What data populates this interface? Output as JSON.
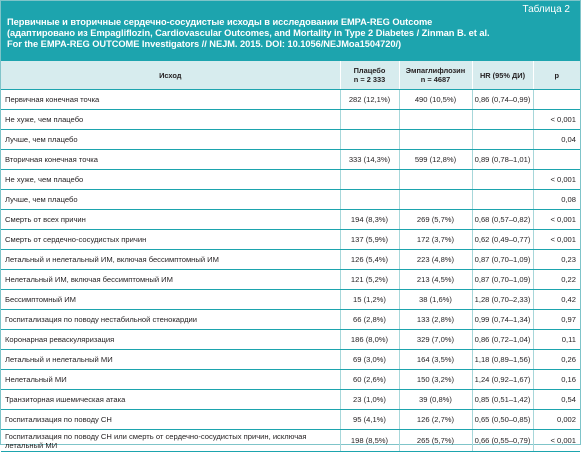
{
  "table_label": "Таблица 2",
  "title_lines": [
    "Первичные и вторичные сердечно-сосудистые исходы в исследовании EMPA-REG Outcome",
    "(адаптировано из Empagliflozin, Cardiovascular Outcomes, and Mortality in Type 2 Diabetes / Zinman B. et al.",
    "For the EMPA-REG OUTCOME Investigators // NEJM. 2015. DOI: 10.1056/NEJMoa1504720/)"
  ],
  "columns": {
    "outcome": "Исход",
    "placebo": "Плацебо",
    "placebo_n": "n = 2 333",
    "empa": "Эмпаглифлозин",
    "empa_n": "n = 4687",
    "hr": "HR (95% ДИ)",
    "p": "p"
  },
  "rows": [
    {
      "outcome": "Первичная конечная точка",
      "placebo": "282 (12,1%)",
      "empa": "490 (10,5%)",
      "hr": "0,86 (0,74–0,99)",
      "p": ""
    },
    {
      "outcome": "Не хуже, чем плацебо",
      "placebo": "",
      "empa": "",
      "hr": "",
      "p": "< 0,001"
    },
    {
      "outcome": "Лучше, чем плацебо",
      "placebo": "",
      "empa": "",
      "hr": "",
      "p": "0,04"
    },
    {
      "outcome": "Вторичная конечная точка",
      "placebo": "333 (14,3%)",
      "empa": "599 (12,8%)",
      "hr": "0,89 (0,78–1,01)",
      "p": ""
    },
    {
      "outcome": "Не хуже, чем плацебо",
      "placebo": "",
      "empa": "",
      "hr": "",
      "p": "< 0,001"
    },
    {
      "outcome": "Лучше, чем плацебо",
      "placebo": "",
      "empa": "",
      "hr": "",
      "p": "0,08"
    },
    {
      "outcome": "Смерть от всех причин",
      "placebo": "194 (8,3%)",
      "empa": "269 (5,7%)",
      "hr": "0,68 (0,57–0,82)",
      "p": "< 0,001"
    },
    {
      "outcome": "Смерть от сердечно-сосудистых причин",
      "placebo": "137 (5,9%)",
      "empa": "172 (3,7%)",
      "hr": "0,62 (0,49–0,77)",
      "p": "< 0,001"
    },
    {
      "outcome": "Летальный и нелетальный ИМ, включая бессимптомный ИМ",
      "placebo": "126 (5,4%)",
      "empa": "223 (4,8%)",
      "hr": "0,87 (0,70–1,09)",
      "p": "0,23"
    },
    {
      "outcome": "Нелетальный ИМ, включая бессимптомный ИМ",
      "placebo": "121 (5,2%)",
      "empa": "213 (4,5%)",
      "hr": "0,87 (0,70–1,09)",
      "p": "0,22"
    },
    {
      "outcome": "Бессимптомный ИМ",
      "placebo": "15 (1,2%)",
      "empa": "38 (1,6%)",
      "hr": "1,28 (0,70–2,33)",
      "p": "0,42"
    },
    {
      "outcome": "Госпитализация по поводу нестабильной стенокардии",
      "placebo": "66 (2,8%)",
      "empa": "133 (2,8%)",
      "hr": "0,99 (0,74–1,34)",
      "p": "0,97"
    },
    {
      "outcome": "Коронарная реваскуляризация",
      "placebo": "186 (8,0%)",
      "empa": "329 (7,0%)",
      "hr": "0,86 (0,72–1,04)",
      "p": "0,11"
    },
    {
      "outcome": "Летальный и нелетальный МИ",
      "placebo": "69 (3,0%)",
      "empa": "164 (3,5%)",
      "hr": "1,18 (0,89–1,56)",
      "p": "0,26"
    },
    {
      "outcome": "Нелетальный МИ",
      "placebo": "60 (2,6%)",
      "empa": "150 (3,2%)",
      "hr": "1,24 (0,92–1,67)",
      "p": "0,16"
    },
    {
      "outcome": "Транзиторная ишемическая атака",
      "placebo": "23 (1,0%)",
      "empa": "39 (0,8%)",
      "hr": "0,85 (0,51–1,42)",
      "p": "0,54"
    },
    {
      "outcome": "Госпитализация по поводу СН",
      "placebo": "95 (4,1%)",
      "empa": "126 (2,7%)",
      "hr": "0,65 (0,50–0,85)",
      "p": "0,002"
    },
    {
      "outcome": "Госпитализация по поводу СН или смерть от сердечно-сосудистых причин, исключая летальный МИ",
      "placebo": "198 (8,5%)",
      "empa": "265 (5,7%)",
      "hr": "0,66 (0,55–0,79)",
      "p": "< 0,001"
    }
  ]
}
